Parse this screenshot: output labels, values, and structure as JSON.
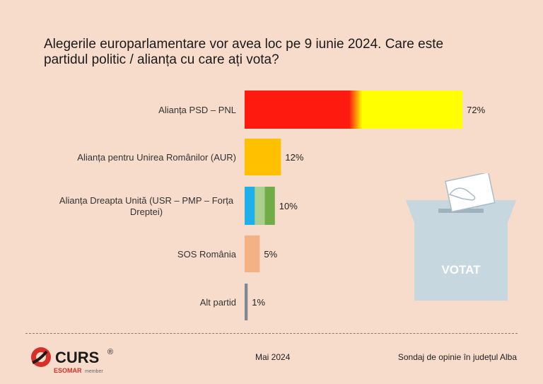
{
  "title": "Alegerile europarlamentare vor avea loc pe 9 iunie 2024. Care este partidul politic / alianța cu care ați vota?",
  "chart_data": {
    "type": "bar",
    "orientation": "horizontal",
    "categories": [
      "Alianța PSD – PNL",
      "Alianța pentru Unirea Românilor (AUR)",
      "Alianța Dreapta Unită (USR – PMP – Forța Dreptei)",
      "SOS România",
      "Alt partid"
    ],
    "values": [
      72,
      12,
      10,
      5,
      1
    ],
    "value_labels": [
      "72%",
      "12%",
      "10%",
      "5%",
      "1%"
    ],
    "unit": "%",
    "xlim": [
      0,
      100
    ],
    "grid": false,
    "bar_colors": [
      [
        "#ff1a0f",
        "#ffff00"
      ],
      [
        "#ffc000"
      ],
      [
        "#1fb0ea",
        "#a9d08e",
        "#70ad47"
      ],
      [
        "#f4b183"
      ],
      [
        "#7f8793"
      ]
    ]
  },
  "illustration": {
    "ballot_box_text": "VOTAT",
    "icon": "ballot-box-icon"
  },
  "footer": {
    "logo_text": "CURS",
    "logo_registered": "®",
    "logo_sub": "ESOMAR",
    "logo_sub2": "member",
    "date": "Mai 2024",
    "survey": "Sondaj de opinie în județul Alba"
  }
}
